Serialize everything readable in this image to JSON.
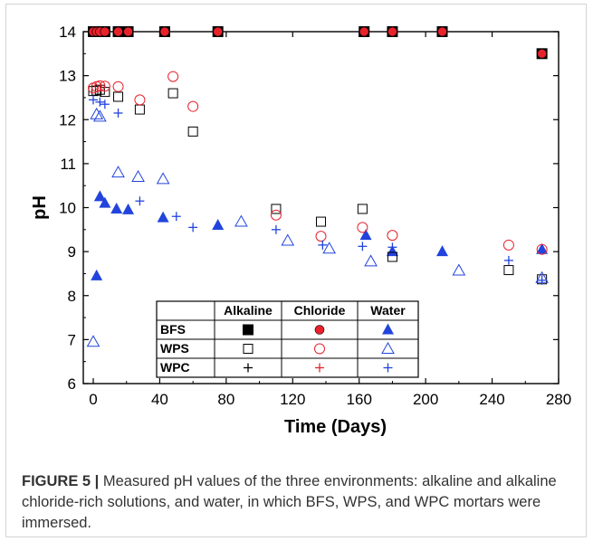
{
  "caption": {
    "label": "FIGURE 5 |",
    "text": "Measured pH values of the three environments: alkaline and alkaline chloride-rich solutions, and water, in which BFS, WPS, and WPC mortars were immersed."
  },
  "colors": {
    "black": "#000000",
    "red": "#e8222b",
    "blue": "#2244dd",
    "gray_line": "#d4d4d4"
  },
  "chart_data": {
    "type": "scatter",
    "xlabel": "Time (Days)",
    "ylabel": "pH",
    "xlim": [
      -6,
      280
    ],
    "ylim": [
      6,
      14
    ],
    "xticks": [
      0,
      40,
      80,
      120,
      160,
      200,
      240,
      280
    ],
    "yticks": [
      6,
      7,
      8,
      9,
      10,
      11,
      12,
      13,
      14
    ],
    "grid": false,
    "legend": {
      "placement": "bottom-left table",
      "columns": [
        "Alkaline",
        "Chloride",
        "Water"
      ],
      "rows": [
        "BFS",
        "WPS",
        "WPC"
      ]
    },
    "series": [
      {
        "name": "BFS Alkaline",
        "marker": "square-filled",
        "color": "#000000",
        "x": [
          0,
          2,
          4,
          7,
          15,
          21,
          43,
          75,
          163,
          180,
          210,
          270
        ],
        "y": [
          14,
          14,
          14,
          14,
          14,
          14,
          14,
          14,
          14,
          14,
          14,
          13.5
        ]
      },
      {
        "name": "BFS Chloride",
        "marker": "circle-filled",
        "color": "#e8222b",
        "x": [
          0,
          2,
          4,
          7,
          15,
          21,
          43,
          75,
          163,
          180,
          210,
          270
        ],
        "y": [
          14,
          14,
          14,
          14,
          14,
          14,
          14,
          14,
          14,
          14,
          14,
          13.5
        ]
      },
      {
        "name": "BFS Water",
        "marker": "triangle-filled",
        "color": "#2244dd",
        "x": [
          2,
          4,
          7,
          14,
          21,
          42,
          75,
          164,
          180,
          210,
          270
        ],
        "y": [
          8.45,
          10.25,
          10.1,
          9.97,
          9.95,
          9.77,
          9.6,
          9.37,
          9.0,
          9.0,
          9.05
        ]
      },
      {
        "name": "WPS Alkaline",
        "marker": "square-open",
        "color": "#000000",
        "x": [
          0,
          2,
          4,
          7,
          15,
          28,
          48,
          60,
          110,
          137,
          162,
          180,
          250,
          270
        ],
        "y": [
          12.65,
          12.66,
          12.68,
          12.63,
          12.52,
          12.23,
          12.6,
          11.73,
          9.97,
          9.68,
          9.97,
          8.88,
          8.58,
          8.37
        ]
      },
      {
        "name": "WPS Chloride",
        "marker": "circle-open",
        "color": "#e8222b",
        "x": [
          0,
          2,
          4,
          7,
          15,
          28,
          48,
          60,
          110,
          137,
          162,
          180,
          250,
          270
        ],
        "y": [
          12.72,
          12.75,
          12.77,
          12.76,
          12.75,
          12.45,
          12.98,
          12.3,
          9.83,
          9.35,
          9.55,
          9.37,
          9.15,
          9.05
        ]
      },
      {
        "name": "WPS Water",
        "marker": "triangle-open",
        "color": "#2244dd",
        "x": [
          0,
          2,
          4,
          15,
          27,
          42,
          89,
          117,
          142,
          167,
          220,
          270
        ],
        "y": [
          6.95,
          12.12,
          12.07,
          10.8,
          10.7,
          10.65,
          9.68,
          9.25,
          9.07,
          8.78,
          8.57,
          8.4
        ]
      },
      {
        "name": "WPC Alkaline",
        "marker": "plus",
        "color": "#000000",
        "x": [],
        "y": []
      },
      {
        "name": "WPC Chloride",
        "marker": "plus",
        "color": "#e8222b",
        "x": [],
        "y": []
      },
      {
        "name": "WPC Water",
        "marker": "plus",
        "color": "#2244dd",
        "x": [
          0,
          4,
          7,
          15,
          28,
          50,
          60,
          110,
          138,
          162,
          180,
          250,
          270
        ],
        "y": [
          12.45,
          12.4,
          12.35,
          12.15,
          10.15,
          9.8,
          9.55,
          9.5,
          9.15,
          9.12,
          9.1,
          8.8,
          8.35
        ]
      }
    ]
  }
}
